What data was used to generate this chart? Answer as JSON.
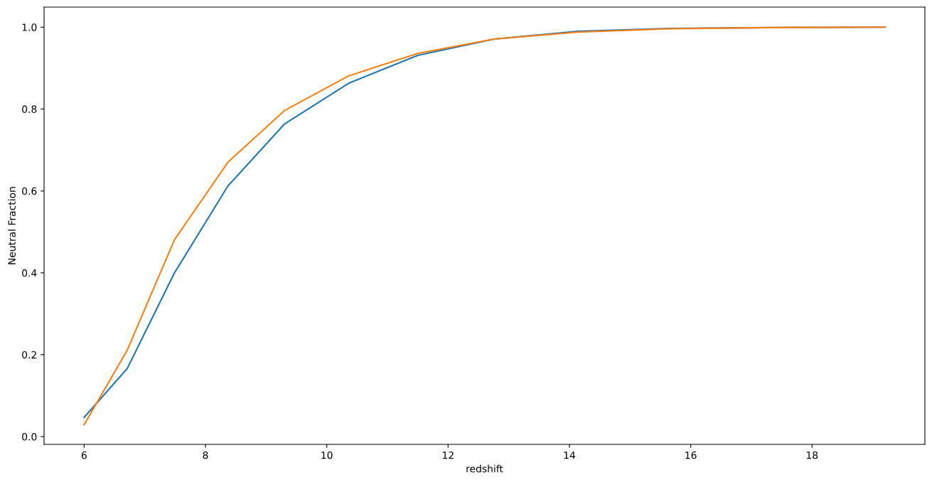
{
  "chart_data": {
    "type": "line",
    "xlabel": "redshift",
    "ylabel": "Neutral Fraction",
    "x": [
      6.0,
      6.71,
      7.49,
      8.37,
      9.3,
      10.36,
      11.5,
      12.76,
      14.14,
      15.66,
      17.3,
      19.2
    ],
    "series": [
      {
        "color": "#1f77b4",
        "values": [
          0.047,
          0.166,
          0.4,
          0.612,
          0.763,
          0.863,
          0.931,
          0.971,
          0.99,
          0.997,
          0.999,
          1.0
        ]
      },
      {
        "color": "#ff7f0e",
        "values": [
          0.029,
          0.211,
          0.481,
          0.67,
          0.796,
          0.881,
          0.936,
          0.971,
          0.988,
          0.996,
          0.999,
          1.0
        ]
      }
    ],
    "xlim": [
      5.34,
      19.86
    ],
    "xticks": [
      6,
      8,
      10,
      12,
      14,
      16,
      18
    ],
    "ylim": [
      -0.019,
      1.049
    ],
    "yticks": [
      {
        "value": 0,
        "label": "0.0"
      },
      {
        "value": 0.2,
        "label": "0.2"
      },
      {
        "value": 0.4,
        "label": "0.4"
      },
      {
        "value": 0.6,
        "label": "0.6"
      },
      {
        "value": 0.8,
        "label": "0.8"
      },
      {
        "value": 1.0,
        "label": "1.0"
      }
    ],
    "grid": false,
    "marker": "none",
    "line_style": "solid"
  }
}
